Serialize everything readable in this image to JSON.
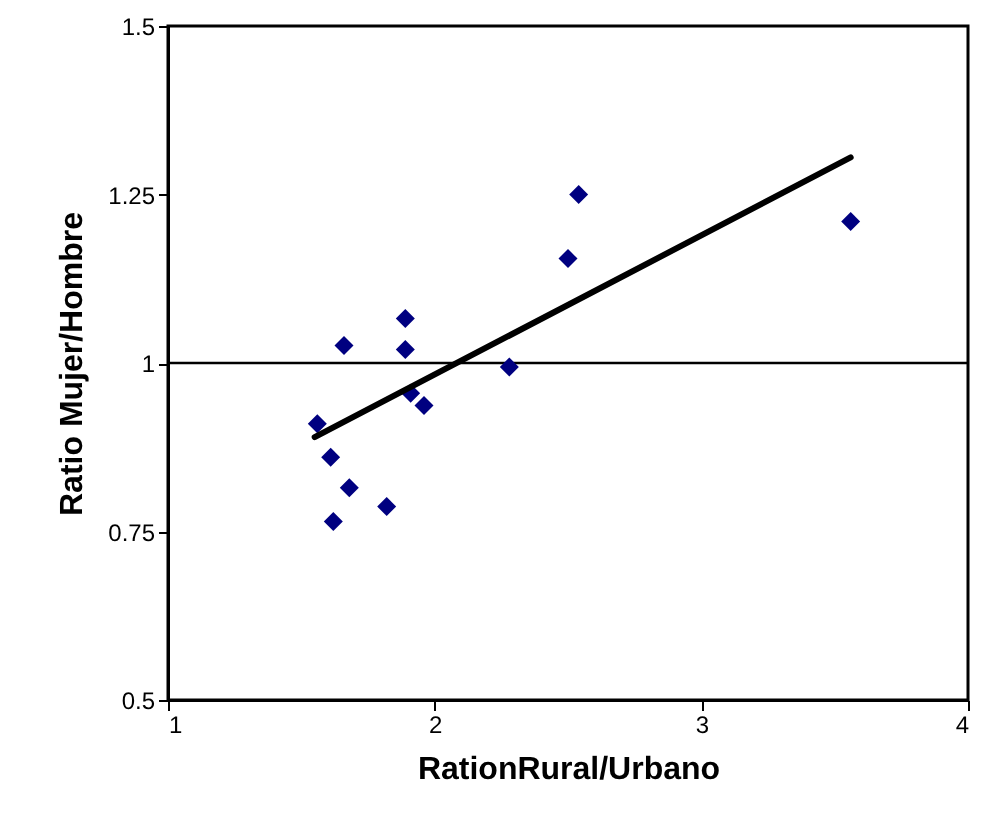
{
  "chart_data": {
    "type": "scatter",
    "xlabel": "RationRural/Urbano",
    "ylabel": "Ratio Mujer/Hombre",
    "xlim": [
      1,
      4
    ],
    "xticks": [
      1,
      2,
      3,
      4
    ],
    "ylim": [
      0.5,
      1.5
    ],
    "yticks": [
      0.5,
      0.75,
      1,
      1.25,
      1.5
    ],
    "grid": false,
    "x": [
      1.56,
      1.61,
      1.68,
      1.62,
      1.66,
      1.89,
      1.89,
      1.91,
      1.96,
      1.82,
      2.28,
      2.5,
      2.54,
      3.56
    ],
    "series": [
      {
        "color": "#000080",
        "marker": "diamond",
        "values": [
          0.91,
          0.86,
          0.815,
          0.765,
          1.026,
          1.066,
          1.02,
          0.955,
          0.937,
          0.787,
          0.994,
          1.155,
          1.25,
          1.21
        ]
      },
      {
        "type": "line",
        "color": "#000000",
        "x": [
          1.55,
          3.56
        ],
        "values": [
          0.89,
          1.305
        ]
      }
    ],
    "ref_lines": [
      {
        "axis": "y",
        "value": 1,
        "color": "#000000"
      }
    ]
  }
}
